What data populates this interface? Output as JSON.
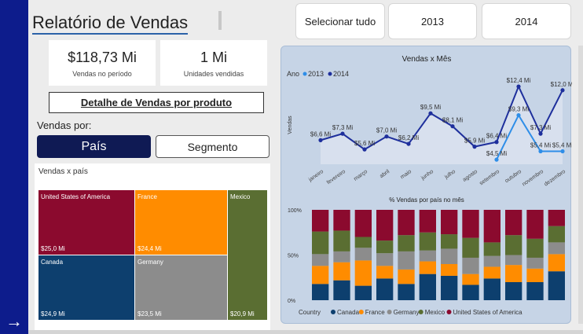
{
  "report": {
    "title": "Relatório de Vendas"
  },
  "slicers": {
    "select_all": "Selecionar tudo",
    "year1": "2013",
    "year2": "2014"
  },
  "cards": [
    {
      "value": "$118,73 Mi",
      "label": "Vendas no período"
    },
    {
      "value": "1 Mi",
      "label": "Unidades vendidas"
    }
  ],
  "detail_button": "Detalhe de Vendas por produto",
  "vendas_por": {
    "label": "Vendas por:",
    "options": [
      "País",
      "Segmento"
    ],
    "selected": "País"
  },
  "colors": {
    "usa": "#8b0a2e",
    "france": "#ff8c00",
    "mexico": "#5a6e32",
    "canada": "#0d3f6e",
    "germany": "#8c8c8c",
    "series2013": "#2f8ee8",
    "series2014": "#1e2f9c",
    "sidebar": "#0d1c8c"
  },
  "treemap": {
    "title": "Vendas x país",
    "tiles": [
      {
        "name": "United States of America",
        "value": "$25,0 Mi",
        "color": "#8b0a2e"
      },
      {
        "name": "France",
        "value": "$24,4 Mi",
        "color": "#ff8c00"
      },
      {
        "name": "Mexico",
        "value": "$20,9 Mi",
        "color": "#5a6e32"
      },
      {
        "name": "Canada",
        "value": "$24,9 Mi",
        "color": "#0d3f6e"
      },
      {
        "name": "Germany",
        "value": "$23,5 Mi",
        "color": "#8c8c8c"
      }
    ]
  },
  "icons": {
    "nav_arrow": "arrow-right-icon"
  },
  "chart_data": [
    {
      "type": "line",
      "title": "Vendas x Mês",
      "ylabel": "Vendas",
      "legend_title": "Ano",
      "legend_position": "top-left",
      "categories": [
        "janeiro",
        "fevereiro",
        "março",
        "abril",
        "maio",
        "junho",
        "julho",
        "agosto",
        "setembro",
        "outubro",
        "novembro",
        "dezembro"
      ],
      "series": [
        {
          "name": "2014",
          "color": "#1e2f9c",
          "values": [
            6.6,
            7.3,
            5.6,
            7.0,
            6.2,
            9.5,
            8.1,
            5.9,
            6.4,
            12.4,
            7.3,
            12.0
          ],
          "labels": [
            "$6,6 Mi",
            "$7,3 Mi",
            "$5,6 Mi",
            "$7,0 Mi",
            "$6,2 Mi",
            "$9,5 Mi",
            "$8,1 Mi",
            "$5,9 Mi",
            "$6,4 Mi",
            "$12,4 Mi",
            "$7,3 Mi",
            "$12,0 Mi"
          ]
        },
        {
          "name": "2013",
          "color": "#2f8ee8",
          "values": [
            null,
            null,
            null,
            null,
            null,
            null,
            null,
            null,
            4.5,
            9.3,
            5.4,
            5.4
          ],
          "labels": [
            "",
            "",
            "",
            "",
            "",
            "",
            "",
            "",
            "$4,5 Mi",
            "$9,3 Mi",
            "$5,4 Mi",
            "$5,4 Mi"
          ]
        }
      ],
      "ylim": [
        4,
        13
      ]
    },
    {
      "type": "bar",
      "stacked": "100%",
      "title": "% Vendas por país no mês",
      "legend_title": "Country",
      "legend_position": "bottom",
      "yticks": [
        "100%",
        "50%",
        "0%"
      ],
      "categories": [
        "janeiro",
        "fevereiro",
        "março",
        "abril",
        "maio",
        "junho",
        "julho",
        "agosto",
        "setembro",
        "outubro",
        "novembro",
        "dezembro"
      ],
      "series": [
        {
          "name": "Canada",
          "color": "#0d3f6e",
          "values": [
            18,
            22,
            16,
            24,
            18,
            29,
            27,
            17,
            24,
            20,
            20,
            32
          ]
        },
        {
          "name": "France",
          "color": "#ff8c00",
          "values": [
            20,
            20,
            28,
            14,
            16,
            14,
            13,
            12,
            13,
            19,
            15,
            19
          ]
        },
        {
          "name": "Germany",
          "color": "#8c8c8c",
          "values": [
            13,
            12,
            14,
            14,
            20,
            12,
            17,
            18,
            12,
            11,
            12,
            13
          ]
        },
        {
          "name": "Mexico",
          "color": "#5a6e32",
          "values": [
            25,
            23,
            12,
            14,
            18,
            20,
            16,
            22,
            15,
            22,
            21,
            18
          ]
        },
        {
          "name": "United States of America",
          "color": "#8b0a2e",
          "values": [
            24,
            23,
            30,
            34,
            28,
            25,
            27,
            31,
            36,
            28,
            32,
            18
          ]
        }
      ]
    }
  ]
}
